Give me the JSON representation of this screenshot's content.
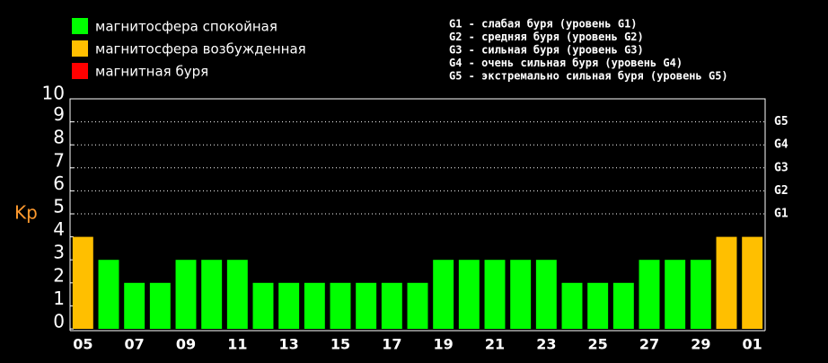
{
  "chart_data": {
    "type": "bar",
    "y_label": "Kp",
    "legend": [
      {
        "name": "магнитосфера спокойная",
        "color": "#00ff00"
      },
      {
        "name": "магнитосфера возбужденная",
        "color": "#ffbf00"
      },
      {
        "name": "магнитная буря",
        "color": "#ff0000"
      }
    ],
    "storm_levels": [
      "G1 - слабая буря (уровень G1)",
      "G2 - средняя буря (уровень G2)",
      "G3 - сильная буря (уровень G3)",
      "G4 - очень сильная буря (уровень G4)",
      "G5 - экстремально сильная буря (уровень G5)"
    ],
    "categories": [
      "05",
      null,
      "07",
      null,
      "09",
      null,
      "11",
      null,
      "13",
      null,
      "15",
      null,
      "17",
      null,
      "19",
      null,
      "21",
      null,
      "23",
      null,
      "25",
      null,
      "27",
      null,
      "29",
      null,
      "01"
    ],
    "values": [
      4,
      3,
      2,
      2,
      3,
      3,
      3,
      2,
      2,
      2,
      2,
      2,
      2,
      2,
      3,
      3,
      3,
      3,
      3,
      2,
      2,
      2,
      3,
      3,
      3,
      4,
      4
    ],
    "colors": [
      "#ffbf00",
      "#00ff00",
      "#00ff00",
      "#00ff00",
      "#00ff00",
      "#00ff00",
      "#00ff00",
      "#00ff00",
      "#00ff00",
      "#00ff00",
      "#00ff00",
      "#00ff00",
      "#00ff00",
      "#00ff00",
      "#00ff00",
      "#00ff00",
      "#00ff00",
      "#00ff00",
      "#00ff00",
      "#00ff00",
      "#00ff00",
      "#00ff00",
      "#00ff00",
      "#00ff00",
      "#00ff00",
      "#ffbf00",
      "#ffbf00"
    ],
    "ylim": [
      0,
      10
    ],
    "yticks": [
      0,
      1,
      2,
      3,
      4,
      5,
      6,
      7,
      8,
      9,
      10
    ],
    "y2lim": [
      0,
      10
    ],
    "y2ticks": [
      {
        "value": 5,
        "label": "G1"
      },
      {
        "value": 6,
        "label": "G2"
      },
      {
        "value": 7,
        "label": "G3"
      },
      {
        "value": 8,
        "label": "G4"
      },
      {
        "value": 9,
        "label": "G5"
      }
    ],
    "grid": true
  }
}
